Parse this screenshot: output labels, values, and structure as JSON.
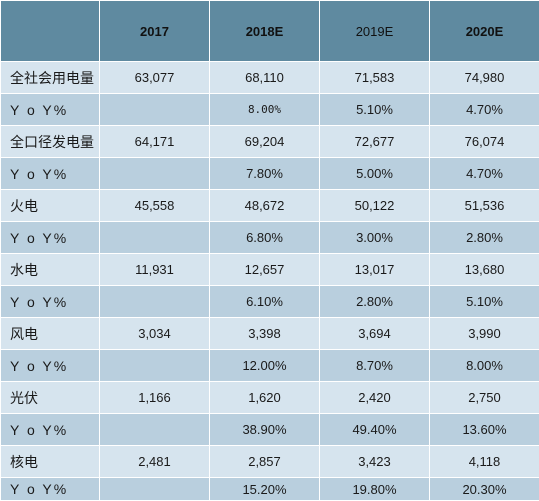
{
  "table": {
    "headers": [
      "",
      "2017",
      "2018E",
      "2019E",
      "2020E"
    ],
    "rows": [
      {
        "label": "全社会用电量",
        "values": [
          "63,077",
          "68,110",
          "71,583",
          "74,980"
        ]
      },
      {
        "label": "Y o Y%",
        "values": [
          "",
          "8.00%",
          "5.10%",
          "4.70%"
        ]
      },
      {
        "label": "全口径发电量",
        "values": [
          "64,171",
          "69,204",
          "72,677",
          "76,074"
        ]
      },
      {
        "label": "Y o Y%",
        "values": [
          "",
          "7.80%",
          "5.00%",
          "4.70%"
        ]
      },
      {
        "label": "火电",
        "values": [
          "45,558",
          "48,672",
          "50,122",
          "51,536"
        ]
      },
      {
        "label": "Y o Y%",
        "values": [
          "",
          "6.80%",
          "3.00%",
          "2.80%"
        ]
      },
      {
        "label": "水电",
        "values": [
          "11,931",
          "12,657",
          "13,017",
          "13,680"
        ]
      },
      {
        "label": "Y o Y%",
        "values": [
          "",
          "6.10%",
          "2.80%",
          "5.10%"
        ]
      },
      {
        "label": "风电",
        "values": [
          "3,034",
          "3,398",
          "3,694",
          "3,990"
        ]
      },
      {
        "label": "Y o Y%",
        "values": [
          "",
          "12.00%",
          "8.70%",
          "8.00%"
        ]
      },
      {
        "label": "光伏",
        "values": [
          "1,166",
          "1,620",
          "2,420",
          "2,750"
        ]
      },
      {
        "label": "Y o Y%",
        "values": [
          "",
          "38.90%",
          "49.40%",
          "13.60%"
        ]
      },
      {
        "label": "核电",
        "values": [
          "2,481",
          "2,857",
          "3,423",
          "4,118"
        ]
      },
      {
        "label": "Y o Y%",
        "values": [
          "",
          "15.20%",
          "19.80%",
          "20.30%"
        ]
      }
    ]
  }
}
